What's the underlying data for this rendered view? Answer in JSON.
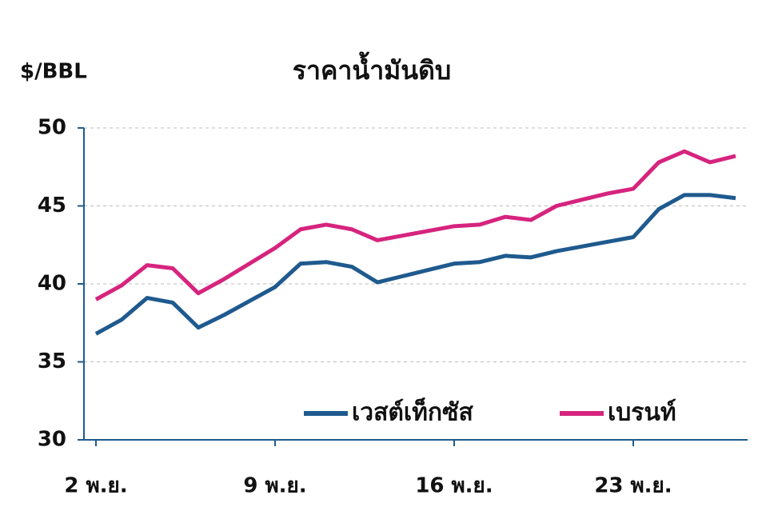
{
  "chart_data": {
    "type": "line",
    "title": "ราคาน้ำมันดิบ",
    "y_label": "$/BBL",
    "categories": [
      "2 พ.ย.",
      null,
      null,
      null,
      null,
      null,
      null,
      "9 พ.ย.",
      null,
      null,
      null,
      null,
      null,
      null,
      "16 พ.ย.",
      null,
      null,
      null,
      null,
      null,
      null,
      "23 พ.ย.",
      null,
      null,
      null,
      null
    ],
    "series": [
      {
        "name": "เวสต์เท็กซัส",
        "color": "#1f5a8e",
        "values": [
          36.8,
          37.7,
          39.1,
          38.8,
          37.2,
          38.0,
          38.9,
          39.8,
          41.3,
          41.4,
          41.1,
          40.1,
          40.5,
          40.9,
          41.3,
          41.4,
          41.8,
          41.7,
          42.1,
          42.4,
          42.7,
          43.0,
          44.8,
          45.7,
          45.7,
          45.5
        ]
      },
      {
        "name": "เบรนท์",
        "color": "#d6247e",
        "values": [
          39.0,
          39.9,
          41.2,
          41.0,
          39.4,
          40.3,
          41.3,
          42.3,
          43.5,
          43.8,
          43.5,
          42.8,
          43.1,
          43.4,
          43.7,
          43.8,
          44.3,
          44.1,
          45.0,
          45.4,
          45.8,
          46.1,
          47.8,
          48.5,
          47.8,
          48.2
        ]
      }
    ],
    "ylim": [
      30,
      50
    ],
    "yticks": [
      30,
      35,
      40,
      45,
      50
    ],
    "grid": true
  }
}
